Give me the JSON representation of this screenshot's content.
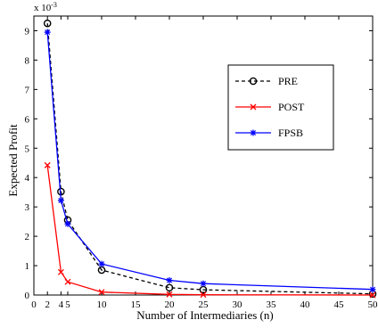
{
  "chart_data": {
    "type": "line",
    "title": "",
    "xlabel": "Number of Intermediaries (n)",
    "ylabel": "Expected Profit",
    "y_scale_note": "x 10",
    "y_scale_exponent": "-3",
    "xlim": [
      0,
      50
    ],
    "ylim": [
      0,
      9.5
    ],
    "xticks": [
      0,
      2,
      4,
      5,
      10,
      15,
      20,
      25,
      30,
      35,
      40,
      45,
      50
    ],
    "yticks": [
      0,
      1,
      2,
      3,
      4,
      5,
      6,
      7,
      8,
      9
    ],
    "grid": false,
    "legend_position": "right",
    "series": [
      {
        "name": "PRE",
        "color": "#000000",
        "dash": "dashed",
        "marker": "circle",
        "x": [
          2,
          4,
          5,
          10,
          20,
          25,
          50
        ],
        "y": [
          9.25,
          3.52,
          2.55,
          0.85,
          0.25,
          0.18,
          0.04
        ]
      },
      {
        "name": "POST",
        "color": "#ff0000",
        "dash": "solid",
        "marker": "x",
        "x": [
          2,
          4,
          5,
          10,
          20,
          25,
          50
        ],
        "y": [
          4.42,
          0.78,
          0.45,
          0.1,
          0.02,
          0.01,
          0.0
        ]
      },
      {
        "name": "FPSB",
        "color": "#0000ff",
        "dash": "solid",
        "marker": "star",
        "x": [
          2,
          4,
          5,
          10,
          20,
          25,
          50
        ],
        "y": [
          8.95,
          3.22,
          2.42,
          1.06,
          0.5,
          0.39,
          0.19
        ]
      }
    ]
  }
}
